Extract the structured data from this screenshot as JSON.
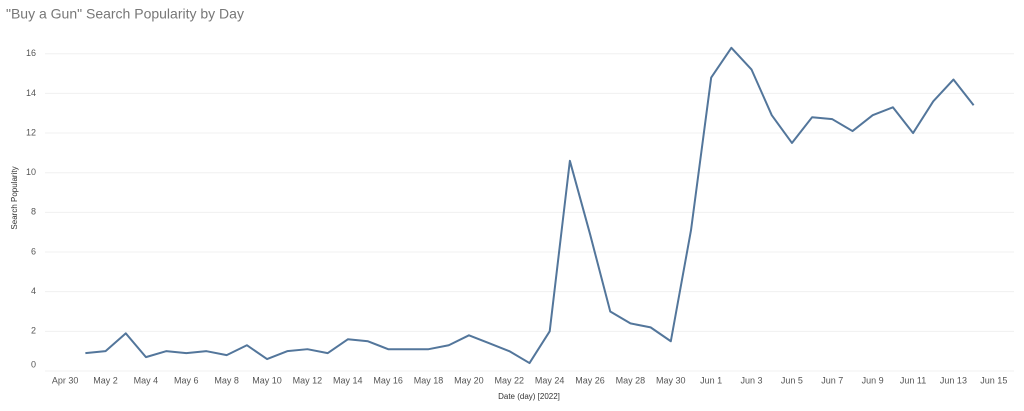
{
  "chart_data": {
    "type": "line",
    "title": "\"Buy a Gun\" Search Popularity by Day",
    "x_label": "Date (day) [2022]",
    "y_label": "Search Popularity",
    "x": [
      "2022-05-01",
      "2022-05-02",
      "2022-05-03",
      "2022-05-04",
      "2022-05-05",
      "2022-05-06",
      "2022-05-07",
      "2022-05-08",
      "2022-05-09",
      "2022-05-10",
      "2022-05-11",
      "2022-05-12",
      "2022-05-13",
      "2022-05-14",
      "2022-05-15",
      "2022-05-16",
      "2022-05-17",
      "2022-05-18",
      "2022-05-19",
      "2022-05-20",
      "2022-05-21",
      "2022-05-22",
      "2022-05-23",
      "2022-05-24",
      "2022-05-25",
      "2022-05-26",
      "2022-05-27",
      "2022-05-28",
      "2022-05-29",
      "2022-05-30",
      "2022-05-31",
      "2022-06-01",
      "2022-06-02",
      "2022-06-03",
      "2022-06-04",
      "2022-06-05",
      "2022-06-06",
      "2022-06-07",
      "2022-06-08",
      "2022-06-09",
      "2022-06-10",
      "2022-06-11",
      "2022-06-12",
      "2022-06-13",
      "2022-06-14"
    ],
    "series": [
      {
        "name": "Search Popularity",
        "color": "#53769b",
        "values": [
          0.9,
          1.0,
          1.9,
          0.7,
          1.0,
          0.9,
          1.0,
          0.8,
          1.3,
          0.6,
          1.0,
          1.1,
          0.9,
          1.6,
          1.5,
          1.1,
          1.1,
          1.1,
          1.3,
          1.8,
          1.4,
          1.0,
          0.4,
          2.0,
          10.6,
          6.9,
          3.0,
          2.4,
          2.2,
          1.5,
          7.1,
          14.8,
          16.3,
          15.2,
          12.9,
          11.5,
          12.8,
          12.7,
          12.1,
          12.9,
          13.3,
          12.0,
          13.6,
          14.7,
          13.4
        ]
      }
    ],
    "xlim": [
      "2022-04-29",
      "2022-06-16"
    ],
    "xticks": [
      {
        "value": "2022-04-30",
        "label": "Apr 30"
      },
      {
        "value": "2022-05-02",
        "label": "May 2"
      },
      {
        "value": "2022-05-04",
        "label": "May 4"
      },
      {
        "value": "2022-05-06",
        "label": "May 6"
      },
      {
        "value": "2022-05-08",
        "label": "May 8"
      },
      {
        "value": "2022-05-10",
        "label": "May 10"
      },
      {
        "value": "2022-05-12",
        "label": "May 12"
      },
      {
        "value": "2022-05-14",
        "label": "May 14"
      },
      {
        "value": "2022-05-16",
        "label": "May 16"
      },
      {
        "value": "2022-05-18",
        "label": "May 18"
      },
      {
        "value": "2022-05-20",
        "label": "May 20"
      },
      {
        "value": "2022-05-22",
        "label": "May 22"
      },
      {
        "value": "2022-05-24",
        "label": "May 24"
      },
      {
        "value": "2022-05-26",
        "label": "May 26"
      },
      {
        "value": "2022-05-28",
        "label": "May 28"
      },
      {
        "value": "2022-05-30",
        "label": "May 30"
      },
      {
        "value": "2022-06-01",
        "label": "Jun 1"
      },
      {
        "value": "2022-06-03",
        "label": "Jun 3"
      },
      {
        "value": "2022-06-05",
        "label": "Jun 5"
      },
      {
        "value": "2022-06-07",
        "label": "Jun 7"
      },
      {
        "value": "2022-06-09",
        "label": "Jun 9"
      },
      {
        "value": "2022-06-11",
        "label": "Jun 11"
      },
      {
        "value": "2022-06-13",
        "label": "Jun 13"
      },
      {
        "value": "2022-06-15",
        "label": "Jun 15"
      }
    ],
    "ylim": [
      0,
      17.5
    ],
    "yticks": [
      0,
      2,
      4,
      6,
      8,
      10,
      12,
      14,
      16
    ],
    "grid": true
  }
}
